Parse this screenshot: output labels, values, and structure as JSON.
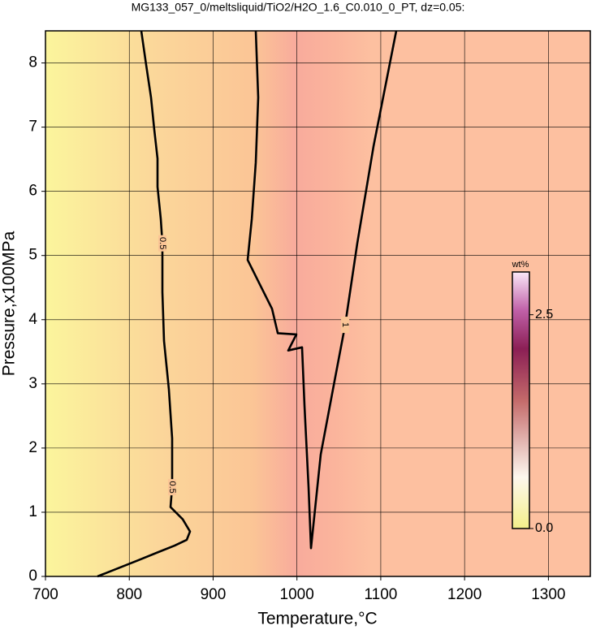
{
  "chart_data": {
    "type": "contour",
    "title": "MG133_057_0/meltsliquid/TiO2/H2O_1.6_C0.010_0_PT, dz=0.05:",
    "x_label": "Temperature,°C",
    "y_label": "Pressure,x100MPa",
    "xlim": [
      700,
      1350
    ],
    "ylim": [
      0,
      8.5
    ],
    "xticks": [
      700,
      800,
      900,
      1000,
      1100,
      1200,
      1300
    ],
    "yticks": [
      0,
      1,
      2,
      3,
      4,
      5,
      6,
      7,
      8
    ],
    "grid": true,
    "contours": [
      {
        "level": 0.5,
        "color": "#000000",
        "x": [
          814.3,
          820.1,
          825.9,
          829.8,
          833.7,
          833.7,
          837.6,
          839.5,
          839.5,
          841.4,
          847.2,
          851.1,
          851.1,
          849.2,
          863.7,
          872.4,
          868.6,
          854.0,
          834.7,
          810.4,
          762
        ],
        "y": [
          8.5,
          7.97,
          7.46,
          6.96,
          6.51,
          6.07,
          5.57,
          5.19,
          4.43,
          3.67,
          2.91,
          2.15,
          1.39,
          1.08,
          0.89,
          0.7,
          0.57,
          0.48,
          0.38,
          0.25,
          0
        ]
      },
      {
        "level": 1,
        "color": "#000000",
        "x": [
          950.9,
          953.8,
          950.9,
          946.1,
          941.2,
          955.7,
          970.3,
          977.1,
          999.3,
          989.6,
          1006.1,
          1009.0,
          1013.9,
          1016.8,
          1028.4,
          1042.9,
          1057.5,
          1072.0,
          1091.4,
          1118.5
        ],
        "y": [
          8.5,
          7.46,
          6.45,
          5.57,
          4.93,
          4.55,
          4.17,
          3.79,
          3.77,
          3.52,
          3.57,
          2.66,
          1.39,
          0.44,
          1.9,
          2.91,
          3.92,
          5.19,
          6.7,
          8.5
        ]
      }
    ],
    "colorbar": {
      "label": "wt%",
      "lim": [
        0,
        3
      ],
      "ticks": [
        {
          "value": 0,
          "label": "0.0"
        },
        2.5
      ]
    }
  }
}
